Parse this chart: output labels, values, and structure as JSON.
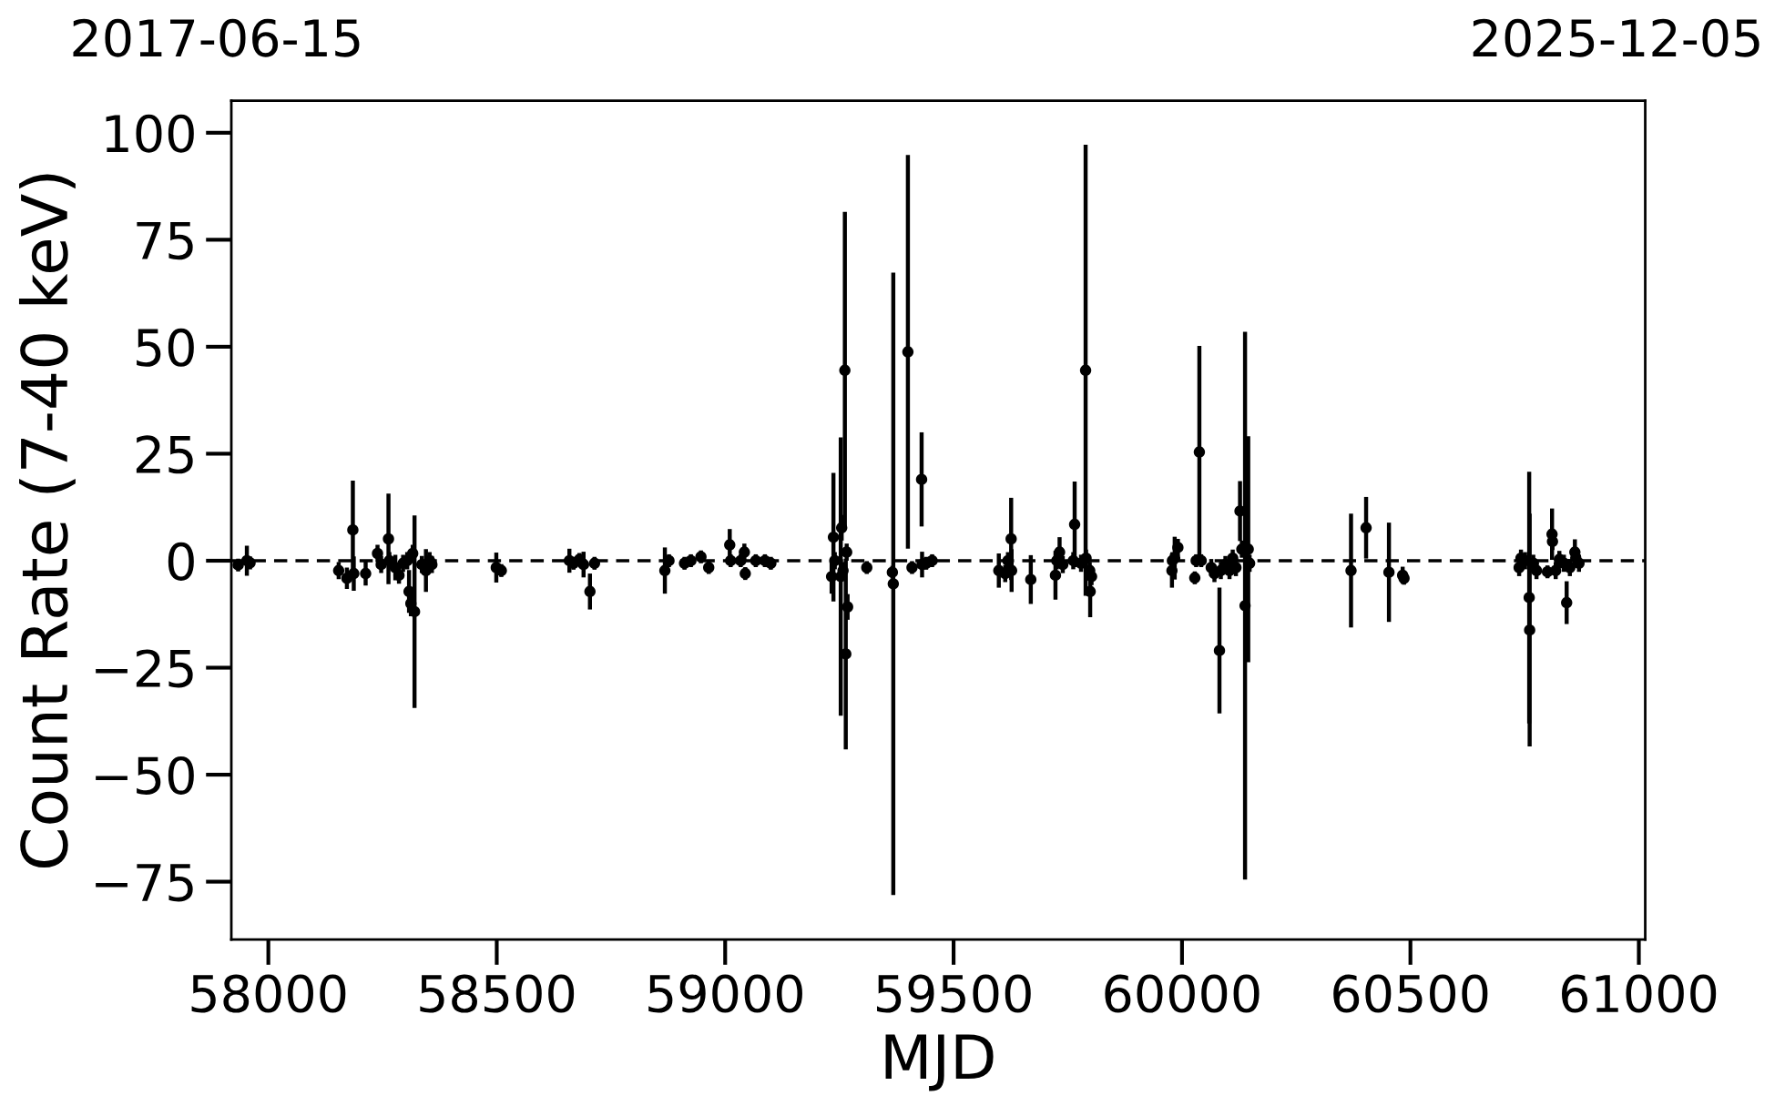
{
  "chart_data": {
    "type": "scatter",
    "xlabel": "MJD",
    "ylabel": "Count Rate (7-40 keV)",
    "annotations": [
      "2017-06-15",
      "2025-12-05"
    ],
    "color": "#000000",
    "marker": "circle",
    "x": [
      57934,
      57953,
      57960,
      58154,
      58172,
      58185,
      58187,
      58213,
      58239,
      58247,
      58263,
      58265,
      58278,
      58286,
      58295,
      58304,
      58308,
      58312,
      58316,
      58320,
      58336,
      58345,
      58353,
      58358,
      58499,
      58510,
      58659,
      58668,
      58681,
      58690,
      58704,
      58714,
      58868,
      58877,
      58911,
      58925,
      58947,
      58964,
      59010,
      59012,
      59034,
      59042,
      59044,
      59067,
      59087,
      59100,
      59233,
      59237,
      59240,
      59253,
      59255,
      59258,
      59262,
      59264,
      59266,
      59268,
      59310,
      59366,
      59368,
      59400,
      59409,
      59430,
      59431,
      59440,
      59453,
      59599,
      59613,
      59619,
      59626,
      59627,
      59669,
      59723,
      59726,
      59732,
      59739,
      59762,
      59765,
      59779,
      59789,
      59790,
      59798,
      59799,
      59802,
      59978,
      59979,
      59984,
      59991,
      60028,
      60031,
      60038,
      60042,
      60064,
      60071,
      60082,
      60085,
      60095,
      60104,
      60111,
      60118,
      60127,
      60131,
      60138,
      60145,
      60148,
      60370,
      60403,
      60453,
      60483,
      60486,
      60738,
      60742,
      60751,
      60760,
      60761,
      60769,
      60776,
      60800,
      60810,
      60811,
      60818,
      60826,
      60836,
      60842,
      60849,
      60860,
      60862,
      60869
    ],
    "values": [
      -1.0,
      0.0,
      -0.5,
      -2.3,
      -4.1,
      7.2,
      -3.0,
      -3.0,
      1.7,
      -0.9,
      5.1,
      0.0,
      -1.6,
      -3.4,
      -0.6,
      0.0,
      -7.2,
      -10.0,
      1.7,
      -11.9,
      -0.9,
      -2.3,
      0.0,
      -0.9,
      -1.6,
      -2.3,
      0.0,
      -0.6,
      0.3,
      -0.9,
      -7.2,
      -0.6,
      -2.3,
      0.0,
      -0.6,
      0.0,
      0.9,
      -1.6,
      3.7,
      0.0,
      0.0,
      2.0,
      -3.0,
      0.0,
      0.0,
      -0.6,
      -3.7,
      5.5,
      0.0,
      -3.7,
      7.7,
      -2.3,
      44.5,
      -21.8,
      2.0,
      -10.8,
      -1.6,
      -2.7,
      -5.4,
      48.8,
      -1.6,
      19.0,
      -0.9,
      -0.6,
      0.0,
      -2.3,
      -3.0,
      0.0,
      5.1,
      -2.3,
      -4.4,
      -3.4,
      0.0,
      2.0,
      -0.9,
      0.0,
      8.5,
      -0.6,
      44.5,
      0.6,
      -2.3,
      -7.2,
      -3.7,
      -2.3,
      0.0,
      0.6,
      3.1,
      -4.0,
      0.0,
      25.4,
      0.0,
      -1.6,
      -3.0,
      -21.0,
      -2.3,
      -0.9,
      -2.3,
      0.6,
      -1.6,
      11.6,
      2.7,
      -10.5,
      2.7,
      -0.6,
      -2.3,
      7.7,
      -2.7,
      -3.4,
      -4.1,
      -1.6,
      0.6,
      0.0,
      -8.6,
      -16.2,
      -0.6,
      -2.3,
      -2.6,
      6.2,
      4.5,
      -2.3,
      0.3,
      -0.6,
      -9.8,
      -1.6,
      2.0,
      0.6,
      -0.6
    ],
    "errors": [
      1.5,
      3.5,
      1.5,
      2.0,
      2.5,
      11.5,
      4.0,
      2.8,
      2.0,
      2.0,
      10.6,
      2.0,
      3.0,
      2.0,
      2.0,
      2.0,
      5.0,
      3.0,
      2.0,
      22.5,
      2.0,
      5.0,
      2.0,
      2.0,
      3.5,
      1.5,
      2.8,
      1.5,
      1.5,
      3.0,
      4.2,
      1.5,
      5.4,
      1.5,
      1.5,
      1.5,
      1.5,
      1.5,
      3.7,
      1.5,
      1.5,
      2.0,
      1.5,
      1.5,
      1.5,
      1.5,
      4.0,
      15.0,
      2.0,
      32.5,
      3.0,
      2.0,
      37.0,
      22.3,
      2.0,
      3.0,
      1.5,
      1.5,
      72.7,
      46.0,
      1.5,
      11.0,
      3.0,
      1.5,
      1.5,
      4.0,
      2.0,
      2.0,
      9.6,
      5.0,
      5.7,
      5.7,
      2.0,
      3.5,
      2.0,
      2.0,
      10.0,
      2.0,
      52.7,
      2.0,
      2.0,
      6.0,
      2.0,
      4.0,
      2.0,
      5.0,
      2.0,
      1.5,
      1.5,
      24.8,
      1.5,
      2.0,
      2.0,
      14.7,
      2.0,
      2.0,
      2.0,
      2.0,
      2.0,
      7.0,
      2.0,
      64.0,
      26.4,
      2.0,
      13.3,
      7.2,
      11.6,
      2.0,
      1.5,
      2.0,
      2.0,
      2.0,
      29.4,
      27.2,
      2.0,
      2.0,
      1.5,
      6.0,
      2.0,
      2.0,
      2.0,
      2.0,
      5.0,
      2.0,
      3.0,
      2.0,
      2.0
    ],
    "xlim": [
      57919,
      61014
    ],
    "xticks": [
      58000,
      58500,
      59000,
      59500,
      60000,
      60500,
      61000
    ],
    "ylim": [
      -88.5,
      107.5
    ],
    "yticks": [
      -75,
      -50,
      -25,
      0,
      25,
      50,
      75,
      100
    ],
    "ref_lines": [
      {
        "axis": "y",
        "value": 0,
        "color": "#000000",
        "line_style": "dashed"
      }
    ]
  }
}
